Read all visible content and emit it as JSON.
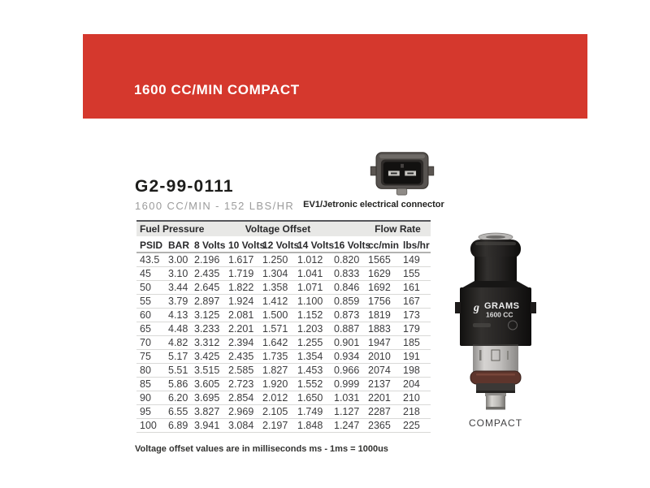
{
  "header": {
    "title": "1600 CC/MIN COMPACT"
  },
  "product": {
    "part_number": "G2-99-0111",
    "subtitle": "1600 CC/MIN - 152 LBS/HR"
  },
  "connector": {
    "caption": "EV1/Jetronic electrical connector",
    "icon": "ev1-connector-icon"
  },
  "injector": {
    "brand": "GRAMS",
    "model": "1600 CC",
    "caption": "COMPACT",
    "icon": "fuel-injector-image"
  },
  "table": {
    "groups": [
      "Fuel Pressure",
      "Voltage Offset",
      "Flow Rate"
    ],
    "columns": [
      "PSID",
      "BAR",
      "8 Volts",
      "10 Volts",
      "12 Volts",
      "14 Volts",
      "16 Volts",
      "cc/min",
      "lbs/hr"
    ],
    "rows": [
      [
        "43.5",
        "3.00",
        "2.196",
        "1.617",
        "1.250",
        "1.012",
        "0.820",
        "1565",
        "149"
      ],
      [
        "45",
        "3.10",
        "2.435",
        "1.719",
        "1.304",
        "1.041",
        "0.833",
        "1629",
        "155"
      ],
      [
        "50",
        "3.44",
        "2.645",
        "1.822",
        "1.358",
        "1.071",
        "0.846",
        "1692",
        "161"
      ],
      [
        "55",
        "3.79",
        "2.897",
        "1.924",
        "1.412",
        "1.100",
        "0.859",
        "1756",
        "167"
      ],
      [
        "60",
        "4.13",
        "3.125",
        "2.081",
        "1.500",
        "1.152",
        "0.873",
        "1819",
        "173"
      ],
      [
        "65",
        "4.48",
        "3.233",
        "2.201",
        "1.571",
        "1.203",
        "0.887",
        "1883",
        "179"
      ],
      [
        "70",
        "4.82",
        "3.312",
        "2.394",
        "1.642",
        "1.255",
        "0.901",
        "1947",
        "185"
      ],
      [
        "75",
        "5.17",
        "3.425",
        "2.435",
        "1.735",
        "1.354",
        "0.934",
        "2010",
        "191"
      ],
      [
        "80",
        "5.51",
        "3.515",
        "2.585",
        "1.827",
        "1.453",
        "0.966",
        "2074",
        "198"
      ],
      [
        "85",
        "5.86",
        "3.605",
        "2.723",
        "1.920",
        "1.552",
        "0.999",
        "2137",
        "204"
      ],
      [
        "90",
        "6.20",
        "3.695",
        "2.854",
        "2.012",
        "1.650",
        "1.031",
        "2201",
        "210"
      ],
      [
        "95",
        "6.55",
        "3.827",
        "2.969",
        "2.105",
        "1.749",
        "1.127",
        "2287",
        "218"
      ],
      [
        "100",
        "6.89",
        "3.941",
        "3.084",
        "2.197",
        "1.848",
        "1.247",
        "2365",
        "225"
      ]
    ]
  },
  "footnote": "Voltage offset values are in milliseconds ms - 1ms = 1000us",
  "colors": {
    "accent_red": "#d5382d",
    "table_group_bg": "#e8e8e6",
    "subtitle_gray": "#9c9c9c"
  }
}
